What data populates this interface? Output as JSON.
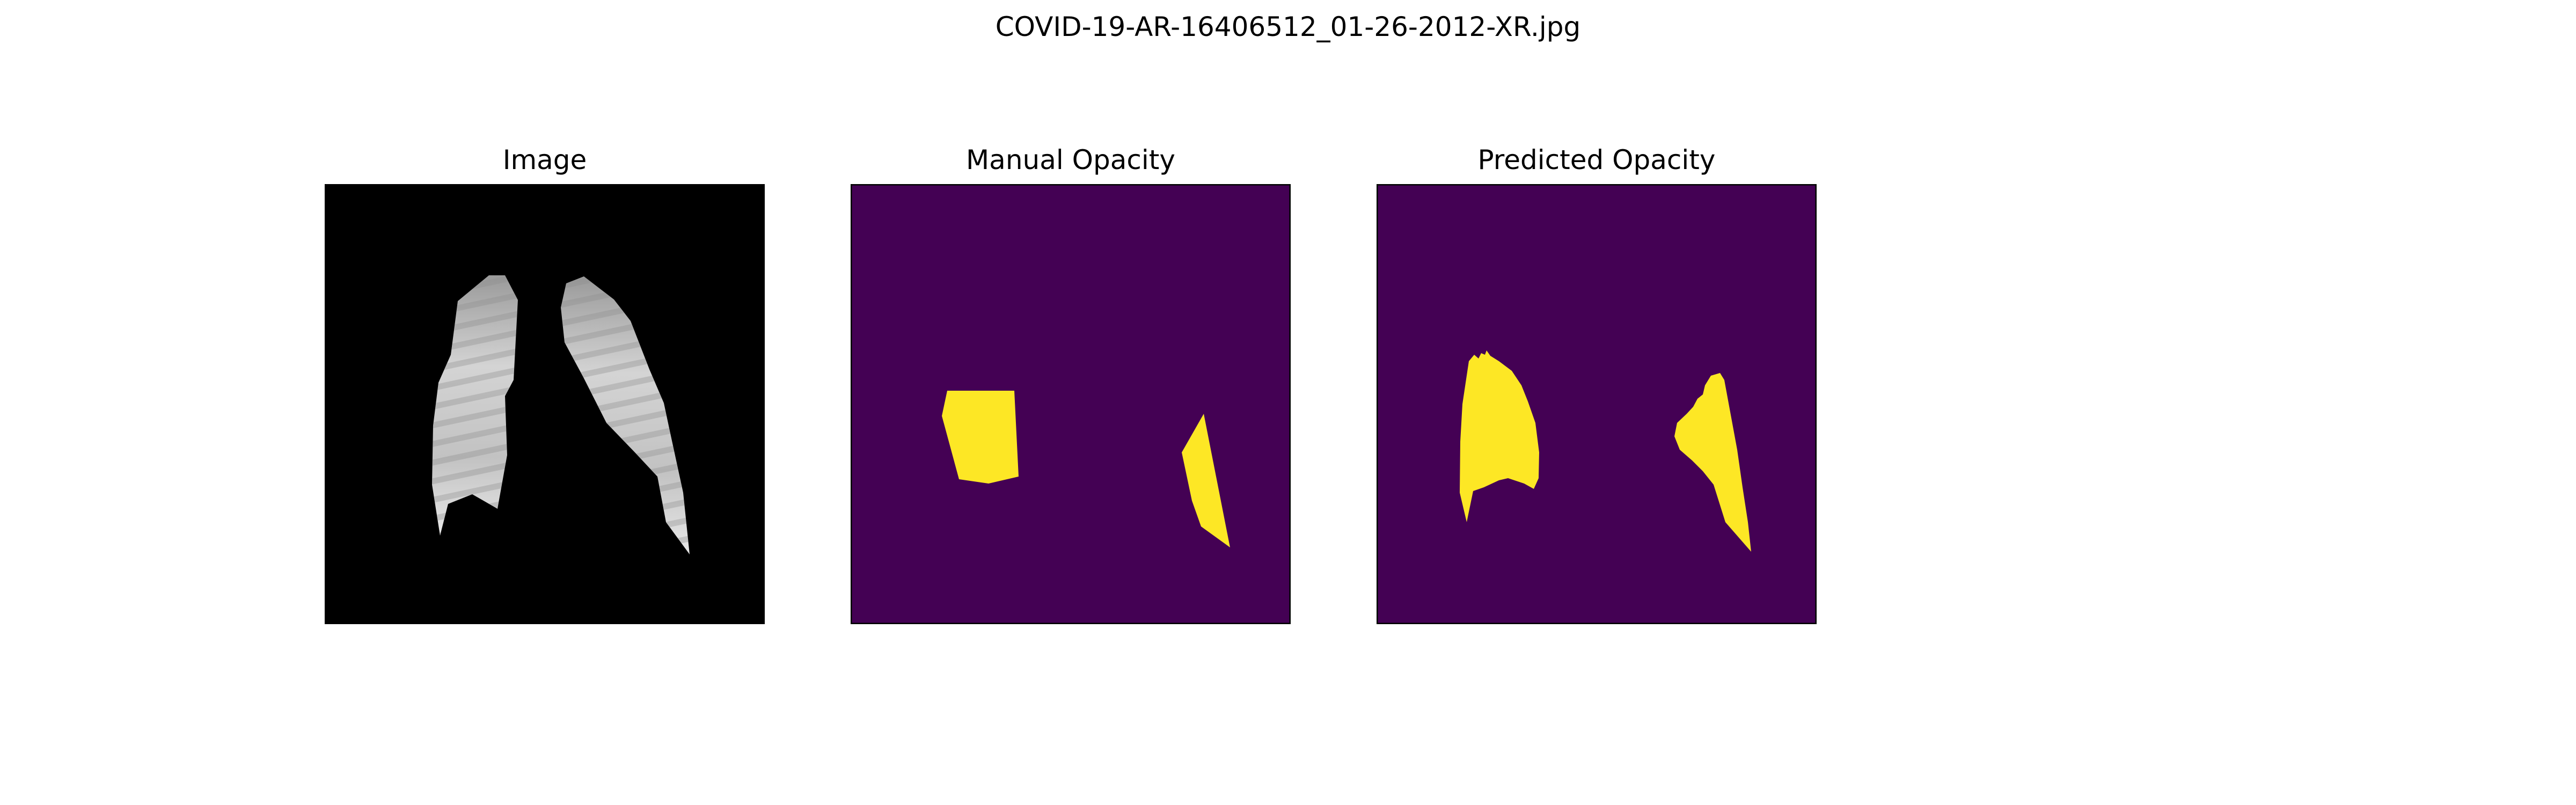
{
  "figure": {
    "title": "COVID-19-AR-16406512_01-26-2012-XR.jpg"
  },
  "panels": [
    {
      "title": "Image"
    },
    {
      "title": "Manual Opacity"
    },
    {
      "title": "Predicted Opacity"
    }
  ],
  "colors": {
    "background_mask": "#440154",
    "foreground_mask": "#fde725",
    "xray_background": "#000000",
    "xray_lung": "#bdbdbd"
  }
}
